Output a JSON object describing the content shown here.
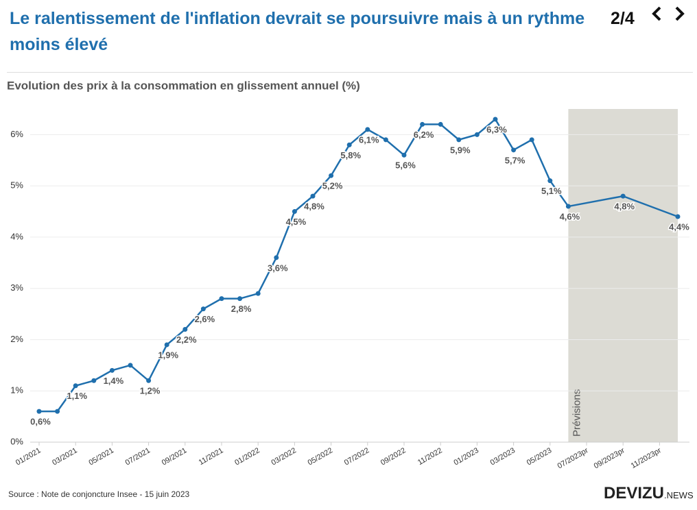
{
  "header": {
    "title": "Le ralentissement de l'inflation devrait se poursuivre mais à un rythme moins élevé",
    "page": "2/4"
  },
  "chart_data": {
    "type": "line",
    "title": "Evolution des prix à la consommation en glissement annuel (%)",
    "x": [
      "01/2021",
      "02/2021",
      "03/2021",
      "04/2021",
      "05/2021",
      "06/2021",
      "07/2021",
      "08/2021",
      "09/2021",
      "10/2021",
      "11/2021",
      "12/2021",
      "01/2022",
      "02/2022",
      "03/2022",
      "04/2022",
      "05/2022",
      "06/2022",
      "07/2022",
      "08/2022",
      "09/2022",
      "10/2022",
      "11/2022",
      "12/2022",
      "01/2023",
      "02/2023",
      "03/2023",
      "04/2023",
      "05/2023",
      "06/2023",
      "09/2023pr",
      "12/2023pr"
    ],
    "series": [
      {
        "color": "#1f6fad",
        "values": [
          0.6,
          0.6,
          1.1,
          1.2,
          1.4,
          1.5,
          1.2,
          1.9,
          2.2,
          2.6,
          2.8,
          2.8,
          2.9,
          3.6,
          4.5,
          4.8,
          5.2,
          5.8,
          6.1,
          5.9,
          5.6,
          6.2,
          6.2,
          5.9,
          6.0,
          6.3,
          5.7,
          5.9,
          5.1,
          4.6,
          4.8,
          4.4
        ],
        "value_labels": [
          "0,6%",
          null,
          "1,1%",
          null,
          "1,4%",
          null,
          "1,2%",
          "1,9%",
          "2,2%",
          "2,6%",
          null,
          "2,8%",
          null,
          "3,6%",
          "4,5%",
          "4,8%",
          "5,2%",
          "5,8%",
          "6,1%",
          null,
          "5,6%",
          "6,2%",
          null,
          "5,9%",
          null,
          "6,3%",
          "5,7%",
          null,
          "5,1%",
          "4,6%",
          "4,8%",
          "4,4%"
        ]
      }
    ],
    "xticks": [
      "01/2021",
      "03/2021",
      "05/2021",
      "07/2021",
      "09/2021",
      "11/2021",
      "01/2022",
      "03/2022",
      "05/2022",
      "07/2022",
      "09/2022",
      "11/2022",
      "01/2023",
      "03/2023",
      "05/2023",
      "07/2023pr",
      "09/2023pr",
      "11/2023pr"
    ],
    "ylim": [
      0,
      6.5
    ],
    "yticks": [
      {
        "value": 0,
        "label": "0%"
      },
      {
        "value": 1,
        "label": "1%"
      },
      {
        "value": 2,
        "label": "2%"
      },
      {
        "value": 3,
        "label": "3%"
      },
      {
        "value": 4,
        "label": "4%"
      },
      {
        "value": 5,
        "label": "5%"
      },
      {
        "value": 6,
        "label": "6%"
      }
    ],
    "grid": true,
    "forecast_band": {
      "label": "Prévisions",
      "from": "06/2023",
      "to": "12/2023pr",
      "color": "#dcdbd4"
    }
  },
  "footer": {
    "source": "Source : Note de conjoncture Insee - 15 juin 2023",
    "logo": "DEVIZU",
    "logo_suffix": ".NEWS"
  }
}
